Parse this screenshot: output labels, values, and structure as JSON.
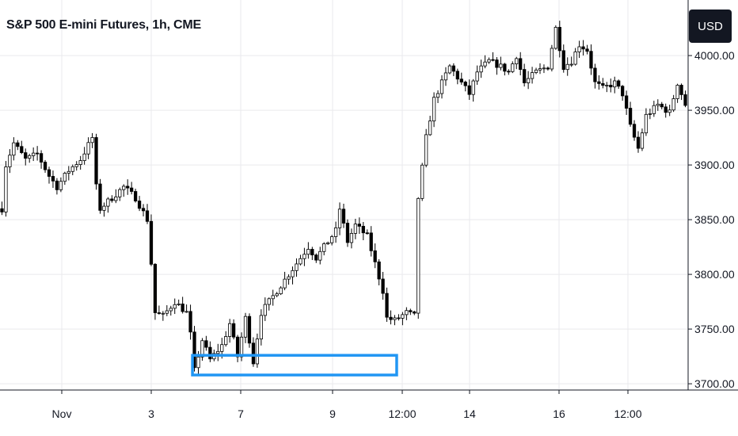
{
  "header": {
    "title": "S&P 500 E-mini Futures, 1h, CME",
    "currency_button": "USD"
  },
  "colors": {
    "candle": "#000000",
    "grid": "#e9e9ec",
    "axis": "#131722",
    "highlight_box": "#2196f3"
  },
  "chart_data": {
    "type": "candlestick",
    "title": "S&P 500 E-mini Futures, 1h, CME",
    "x_ticks": [
      "Nov",
      "3",
      "7",
      "9",
      "12:00",
      "14",
      "16",
      "12:00"
    ],
    "y_ticks": [
      "3700.00",
      "3750.00",
      "3800.00",
      "3850.00",
      "3900.00",
      "3950.00",
      "4000.00"
    ],
    "ylim": [
      3695,
      4045
    ],
    "grid": true,
    "price_path": [
      [
        0,
        3860
      ],
      [
        1,
        3900
      ],
      [
        3,
        3920
      ],
      [
        6,
        3905
      ],
      [
        9,
        3910
      ],
      [
        12,
        3890
      ],
      [
        14,
        3880
      ],
      [
        17,
        3895
      ],
      [
        20,
        3905
      ],
      [
        23,
        3925
      ],
      [
        24,
        3880
      ],
      [
        25,
        3860
      ],
      [
        28,
        3870
      ],
      [
        31,
        3880
      ],
      [
        34,
        3870
      ],
      [
        37,
        3850
      ],
      [
        38,
        3810
      ],
      [
        39,
        3765
      ],
      [
        41,
        3762
      ],
      [
        44,
        3775
      ],
      [
        47,
        3765
      ],
      [
        48,
        3745
      ],
      [
        49,
        3712
      ],
      [
        51,
        3740
      ],
      [
        53,
        3722
      ],
      [
        56,
        3735
      ],
      [
        58,
        3755
      ],
      [
        60,
        3725
      ],
      [
        62,
        3760
      ],
      [
        64,
        3720
      ],
      [
        66,
        3765
      ],
      [
        69,
        3780
      ],
      [
        72,
        3795
      ],
      [
        75,
        3810
      ],
      [
        78,
        3825
      ],
      [
        80,
        3815
      ],
      [
        82,
        3825
      ],
      [
        85,
        3840
      ],
      [
        86,
        3860
      ],
      [
        88,
        3830
      ],
      [
        90,
        3845
      ],
      [
        93,
        3835
      ],
      [
        95,
        3810
      ],
      [
        97,
        3785
      ],
      [
        98,
        3760
      ],
      [
        100,
        3758
      ],
      [
        103,
        3765
      ],
      [
        105,
        3762
      ],
      [
        106,
        3870
      ],
      [
        108,
        3925
      ],
      [
        110,
        3960
      ],
      [
        112,
        3975
      ],
      [
        114,
        3990
      ],
      [
        117,
        3975
      ],
      [
        119,
        3965
      ],
      [
        121,
        3985
      ],
      [
        124,
        3995
      ],
      [
        127,
        3990
      ],
      [
        129,
        3985
      ],
      [
        131,
        4000
      ],
      [
        133,
        3975
      ],
      [
        136,
        3985
      ],
      [
        139,
        3990
      ],
      [
        141,
        4025
      ],
      [
        143,
        3990
      ],
      [
        145,
        3995
      ],
      [
        147,
        4010
      ],
      [
        149,
        4005
      ],
      [
        151,
        3975
      ],
      [
        153,
        3970
      ],
      [
        156,
        3975
      ],
      [
        158,
        3965
      ],
      [
        160,
        3935
      ],
      [
        162,
        3915
      ],
      [
        164,
        3945
      ],
      [
        167,
        3955
      ],
      [
        170,
        3948
      ],
      [
        172,
        3975
      ],
      [
        174,
        3955
      ]
    ],
    "highlight_zone": {
      "from": 49,
      "to": 100,
      "low": 3708,
      "high": 3726
    }
  }
}
